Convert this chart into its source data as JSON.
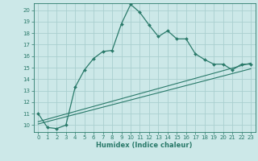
{
  "xlabel": "Humidex (Indice chaleur)",
  "bg_color": "#cce8e8",
  "grid_color": "#aacfcf",
  "line_color": "#2a7a6a",
  "xlim": [
    -0.5,
    23.5
  ],
  "ylim": [
    9.4,
    20.6
  ],
  "yticks": [
    10,
    11,
    12,
    13,
    14,
    15,
    16,
    17,
    18,
    19,
    20
  ],
  "xticks": [
    0,
    1,
    2,
    3,
    4,
    5,
    6,
    7,
    8,
    9,
    10,
    11,
    12,
    13,
    14,
    15,
    16,
    17,
    18,
    19,
    20,
    21,
    22,
    23
  ],
  "main_x": [
    0,
    1,
    2,
    3,
    4,
    5,
    6,
    7,
    8,
    9,
    10,
    11,
    12,
    13,
    14,
    15,
    16,
    17,
    18,
    19,
    20,
    21,
    22,
    23
  ],
  "main_y": [
    11.0,
    9.8,
    9.7,
    10.0,
    13.3,
    14.8,
    15.8,
    16.4,
    16.5,
    18.8,
    20.5,
    19.8,
    18.7,
    17.7,
    18.2,
    17.5,
    17.5,
    16.2,
    15.7,
    15.3,
    15.3,
    14.8,
    15.3,
    15.3
  ],
  "line1_x": [
    0,
    23
  ],
  "line1_y": [
    10.1,
    14.9
  ],
  "line2_x": [
    0,
    23
  ],
  "line2_y": [
    10.3,
    15.4
  ],
  "line3_x": [
    0,
    23
  ],
  "line3_y": [
    10.05,
    15.15
  ]
}
